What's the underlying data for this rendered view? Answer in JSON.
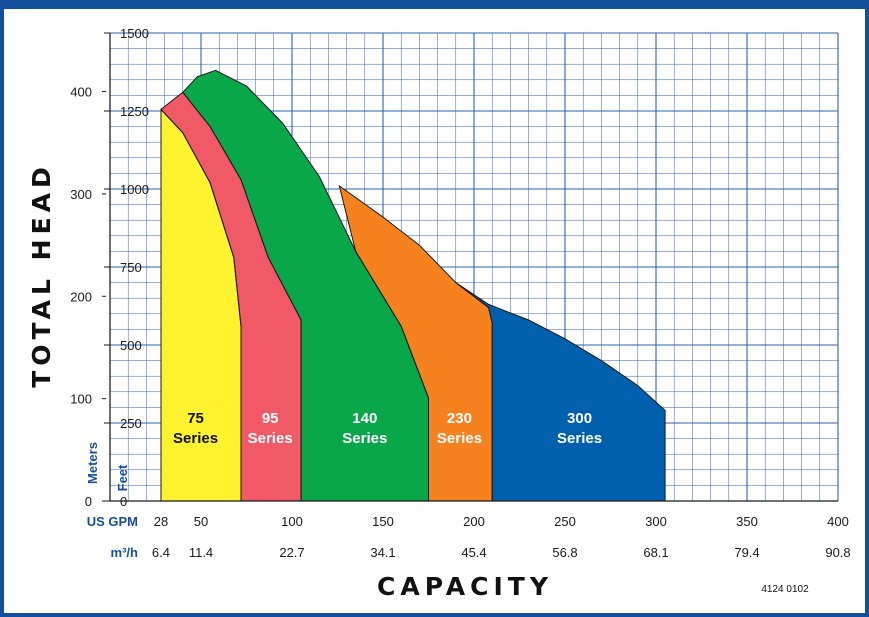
{
  "chart_data": {
    "type": "area",
    "x_axis": {
      "primary_unit": "US GPM",
      "primary_ticks": [
        28,
        50,
        100,
        150,
        200,
        250,
        300,
        350,
        400
      ],
      "secondary_unit": "m³/h",
      "secondary_ticks": [
        "6.4",
        "11.4",
        "22.7",
        "34.1",
        "45.4",
        "56.8",
        "68.1",
        "79.4",
        "90.8"
      ],
      "xlim": [
        0,
        400
      ],
      "title": "CAPACITY"
    },
    "y_axis": {
      "title": "TOTAL HEAD",
      "primary_unit": "Feet",
      "primary_ticks": [
        0,
        250,
        500,
        750,
        1000,
        1250,
        1500
      ],
      "secondary_unit": "Meters",
      "secondary_ticks": [
        0,
        100,
        200,
        300,
        400
      ],
      "ylim": [
        0,
        1500
      ]
    },
    "grid": true,
    "series": [
      {
        "name": "75",
        "suffix": "Series",
        "color": "#fff22e",
        "text_color": "#111111",
        "points": [
          [
            28,
            1255
          ],
          [
            40,
            1180
          ],
          [
            55,
            1020
          ],
          [
            68,
            780
          ],
          [
            72,
            560
          ],
          [
            72,
            0
          ],
          [
            28,
            0
          ]
        ]
      },
      {
        "name": "95",
        "suffix": "Series",
        "color": "#f05a66",
        "text_color": "#ffffff",
        "points": [
          [
            28,
            1255
          ],
          [
            40,
            1310
          ],
          [
            55,
            1200
          ],
          [
            72,
            1030
          ],
          [
            87,
            780
          ],
          [
            105,
            580
          ],
          [
            105,
            0
          ],
          [
            72,
            0
          ],
          [
            72,
            560
          ],
          [
            68,
            780
          ],
          [
            55,
            1020
          ],
          [
            40,
            1180
          ]
        ]
      },
      {
        "name": "140",
        "suffix": "Series",
        "color": "#0aa64a",
        "text_color": "#ffffff",
        "points": [
          [
            40,
            1310
          ],
          [
            48,
            1360
          ],
          [
            58,
            1380
          ],
          [
            75,
            1330
          ],
          [
            95,
            1210
          ],
          [
            115,
            1040
          ],
          [
            135,
            800
          ],
          [
            160,
            560
          ],
          [
            175,
            330
          ],
          [
            175,
            0
          ],
          [
            105,
            0
          ],
          [
            105,
            580
          ],
          [
            87,
            780
          ],
          [
            72,
            1030
          ],
          [
            55,
            1200
          ]
        ]
      },
      {
        "name": "230",
        "suffix": "Series",
        "color": "#f5821f",
        "text_color": "#ffffff",
        "points": [
          [
            126,
            1010
          ],
          [
            150,
            910
          ],
          [
            170,
            820
          ],
          [
            190,
            700
          ],
          [
            208,
            620
          ],
          [
            210,
            570
          ],
          [
            210,
            0
          ],
          [
            175,
            0
          ],
          [
            175,
            330
          ],
          [
            160,
            560
          ],
          [
            135,
            800
          ]
        ]
      },
      {
        "name": "300",
        "suffix": "Series",
        "color": "#0060ad",
        "text_color": "#ffffff",
        "points": [
          [
            190,
            700
          ],
          [
            208,
            630
          ],
          [
            230,
            580
          ],
          [
            250,
            520
          ],
          [
            270,
            450
          ],
          [
            290,
            370
          ],
          [
            305,
            290
          ],
          [
            305,
            0
          ],
          [
            210,
            0
          ],
          [
            210,
            570
          ],
          [
            208,
            620
          ]
        ]
      }
    ],
    "figure_code": "4124 0102"
  }
}
